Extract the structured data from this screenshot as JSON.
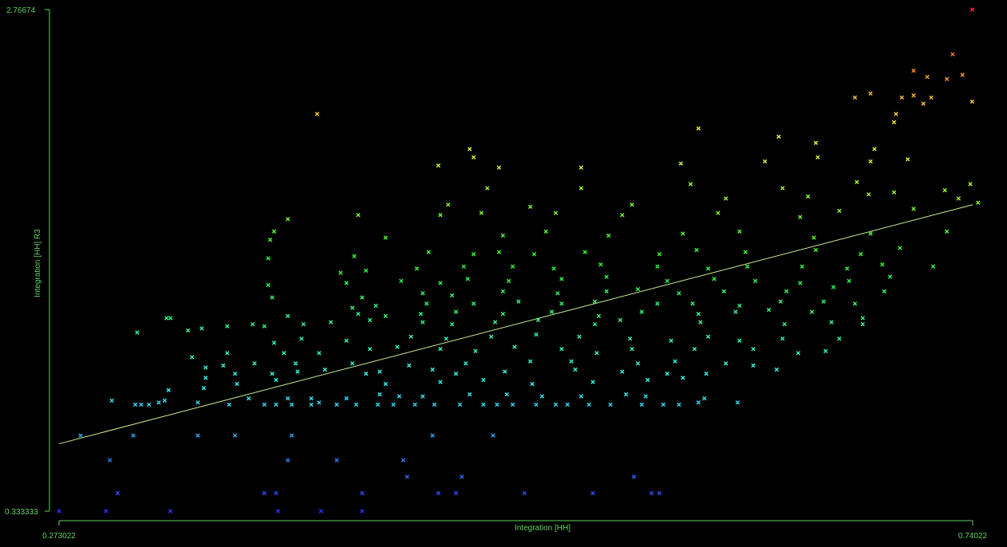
{
  "chart_data": {
    "type": "scatter",
    "xlabel": "Integration [HH]",
    "ylabel": "Integration [HH] R3",
    "xlim": [
      0.273022,
      0.74022
    ],
    "ylim": [
      0.333333,
      2.76674
    ],
    "x_tick_labels": [
      "0.273022",
      "0.74022"
    ],
    "y_tick_labels": [
      "2.76674",
      "0.333333"
    ],
    "grid": false,
    "legend": "none",
    "marker": "x",
    "color_scale": "rainbow by y value (blue low, red high)",
    "colors": {
      "background": "#000000",
      "axis": "#5fd35f",
      "text": "#5fd35f",
      "fit_line": "#c8f08c"
    },
    "regression_line": {
      "x": [
        0.273022,
        0.74022
      ],
      "y": [
        0.66,
        1.82
      ]
    },
    "points": [
      [
        0.273022,
        0.333333
      ],
      [
        0.297,
        0.333333
      ],
      [
        0.33,
        0.333333
      ],
      [
        0.385,
        0.333333
      ],
      [
        0.407,
        0.333333
      ],
      [
        0.428,
        0.333333
      ],
      [
        0.303,
        0.42
      ],
      [
        0.378,
        0.42
      ],
      [
        0.384,
        0.42
      ],
      [
        0.428,
        0.42
      ],
      [
        0.467,
        0.42
      ],
      [
        0.476,
        0.42
      ],
      [
        0.511,
        0.42
      ],
      [
        0.546,
        0.42
      ],
      [
        0.58,
        0.42
      ],
      [
        0.576,
        0.42
      ],
      [
        0.451,
        0.5
      ],
      [
        0.479,
        0.5
      ],
      [
        0.567,
        0.5
      ],
      [
        0.299,
        0.58
      ],
      [
        0.39,
        0.58
      ],
      [
        0.415,
        0.58
      ],
      [
        0.449,
        0.58
      ],
      [
        0.284,
        0.7
      ],
      [
        0.311,
        0.7
      ],
      [
        0.344,
        0.7
      ],
      [
        0.363,
        0.7
      ],
      [
        0.392,
        0.7
      ],
      [
        0.464,
        0.7
      ],
      [
        0.495,
        0.7
      ],
      [
        0.3,
        0.87
      ],
      [
        0.312,
        0.85
      ],
      [
        0.315,
        0.85
      ],
      [
        0.319,
        0.85
      ],
      [
        0.324,
        0.86
      ],
      [
        0.327,
        0.87
      ],
      [
        0.344,
        0.86
      ],
      [
        0.36,
        0.85
      ],
      [
        0.378,
        0.85
      ],
      [
        0.384,
        0.85
      ],
      [
        0.392,
        0.85
      ],
      [
        0.402,
        0.85
      ],
      [
        0.406,
        0.86
      ],
      [
        0.415,
        0.85
      ],
      [
        0.425,
        0.85
      ],
      [
        0.436,
        0.85
      ],
      [
        0.444,
        0.85
      ],
      [
        0.455,
        0.85
      ],
      [
        0.465,
        0.85
      ],
      [
        0.478,
        0.85
      ],
      [
        0.49,
        0.85
      ],
      [
        0.497,
        0.85
      ],
      [
        0.505,
        0.85
      ],
      [
        0.517,
        0.85
      ],
      [
        0.527,
        0.85
      ],
      [
        0.533,
        0.85
      ],
      [
        0.544,
        0.85
      ],
      [
        0.555,
        0.85
      ],
      [
        0.571,
        0.85
      ],
      [
        0.582,
        0.85
      ],
      [
        0.59,
        0.85
      ],
      [
        0.6,
        0.86
      ],
      [
        0.62,
        0.86
      ],
      [
        0.37,
        0.88
      ],
      [
        0.39,
        0.88
      ],
      [
        0.402,
        0.88
      ],
      [
        0.42,
        0.88
      ],
      [
        0.437,
        0.9
      ],
      [
        0.447,
        0.89
      ],
      [
        0.459,
        0.89
      ],
      [
        0.483,
        0.9
      ],
      [
        0.502,
        0.9
      ],
      [
        0.52,
        0.89
      ],
      [
        0.54,
        0.89
      ],
      [
        0.563,
        0.9
      ],
      [
        0.573,
        0.89
      ],
      [
        0.603,
        0.88
      ],
      [
        0.329,
        0.92
      ],
      [
        0.347,
        0.93
      ],
      [
        0.364,
        0.95
      ],
      [
        0.384,
        0.97
      ],
      [
        0.44,
        0.95
      ],
      [
        0.468,
        0.96
      ],
      [
        0.49,
        0.97
      ],
      [
        0.515,
        0.95
      ],
      [
        0.546,
        0.96
      ],
      [
        0.574,
        0.97
      ],
      [
        0.592,
        0.98
      ],
      [
        0.348,
        0.98
      ],
      [
        0.363,
        1.0
      ],
      [
        0.382,
        1.0
      ],
      [
        0.395,
        1.01
      ],
      [
        0.409,
        1.02
      ],
      [
        0.43,
        1.0
      ],
      [
        0.437,
        1.01
      ],
      [
        0.464,
        1.02
      ],
      [
        0.476,
        1.0
      ],
      [
        0.501,
        1.01
      ],
      [
        0.537,
        1.02
      ],
      [
        0.561,
        1.01
      ],
      [
        0.584,
        1.0
      ],
      [
        0.604,
        1.0
      ],
      [
        0.64,
        1.02
      ],
      [
        0.348,
        1.03
      ],
      [
        0.357,
        1.04
      ],
      [
        0.373,
        1.05
      ],
      [
        0.394,
        1.05
      ],
      [
        0.423,
        1.05
      ],
      [
        0.452,
        1.04
      ],
      [
        0.481,
        1.05
      ],
      [
        0.514,
        1.06
      ],
      [
        0.535,
        1.06
      ],
      [
        0.569,
        1.05
      ],
      [
        0.588,
        1.06
      ],
      [
        0.614,
        1.05
      ],
      [
        0.628,
        1.04
      ],
      [
        0.341,
        1.08
      ],
      [
        0.359,
        1.1
      ],
      [
        0.388,
        1.1
      ],
      [
        0.406,
        1.1
      ],
      [
        0.432,
        1.12
      ],
      [
        0.446,
        1.13
      ],
      [
        0.468,
        1.12
      ],
      [
        0.486,
        1.11
      ],
      [
        0.506,
        1.13
      ],
      [
        0.53,
        1.12
      ],
      [
        0.548,
        1.1
      ],
      [
        0.566,
        1.12
      ],
      [
        0.598,
        1.12
      ],
      [
        0.628,
        1.12
      ],
      [
        0.651,
        1.1
      ],
      [
        0.665,
        1.11
      ],
      [
        0.383,
        1.15
      ],
      [
        0.397,
        1.17
      ],
      [
        0.42,
        1.16
      ],
      [
        0.453,
        1.18
      ],
      [
        0.471,
        1.17
      ],
      [
        0.494,
        1.18
      ],
      [
        0.517,
        1.19
      ],
      [
        0.539,
        1.18
      ],
      [
        0.565,
        1.17
      ],
      [
        0.586,
        1.16
      ],
      [
        0.605,
        1.18
      ],
      [
        0.621,
        1.16
      ],
      [
        0.643,
        1.17
      ],
      [
        0.672,
        1.17
      ],
      [
        0.313,
        1.2
      ],
      [
        0.339,
        1.21
      ],
      [
        0.346,
        1.22
      ],
      [
        0.359,
        1.23
      ],
      [
        0.372,
        1.24
      ],
      [
        0.378,
        1.23
      ],
      [
        0.398,
        1.24
      ],
      [
        0.412,
        1.25
      ],
      [
        0.432,
        1.26
      ],
      [
        0.459,
        1.25
      ],
      [
        0.474,
        1.24
      ],
      [
        0.496,
        1.25
      ],
      [
        0.518,
        1.26
      ],
      [
        0.547,
        1.24
      ],
      [
        0.56,
        1.26
      ],
      [
        0.601,
        1.25
      ],
      [
        0.644,
        1.24
      ],
      [
        0.668,
        1.25
      ],
      [
        0.684,
        1.24
      ],
      [
        0.328,
        1.27
      ],
      [
        0.33,
        1.27
      ],
      [
        0.39,
        1.28
      ],
      [
        0.426,
        1.29
      ],
      [
        0.44,
        1.28
      ],
      [
        0.458,
        1.29
      ],
      [
        0.476,
        1.3
      ],
      [
        0.5,
        1.29
      ],
      [
        0.525,
        1.3
      ],
      [
        0.549,
        1.28
      ],
      [
        0.571,
        1.3
      ],
      [
        0.6,
        1.29
      ],
      [
        0.619,
        1.3
      ],
      [
        0.636,
        1.31
      ],
      [
        0.658,
        1.3
      ],
      [
        0.684,
        1.27
      ],
      [
        0.423,
        1.32
      ],
      [
        0.435,
        1.33
      ],
      [
        0.461,
        1.34
      ],
      [
        0.485,
        1.34
      ],
      [
        0.508,
        1.35
      ],
      [
        0.53,
        1.34
      ],
      [
        0.547,
        1.35
      ],
      [
        0.579,
        1.34
      ],
      [
        0.597,
        1.34
      ],
      [
        0.621,
        1.33
      ],
      [
        0.642,
        1.35
      ],
      [
        0.664,
        1.35
      ],
      [
        0.68,
        1.34
      ],
      [
        0.382,
        1.37
      ],
      [
        0.428,
        1.37
      ],
      [
        0.459,
        1.39
      ],
      [
        0.474,
        1.38
      ],
      [
        0.5,
        1.4
      ],
      [
        0.528,
        1.39
      ],
      [
        0.553,
        1.4
      ],
      [
        0.569,
        1.41
      ],
      [
        0.59,
        1.39
      ],
      [
        0.613,
        1.4
      ],
      [
        0.645,
        1.4
      ],
      [
        0.669,
        1.42
      ],
      [
        0.695,
        1.4
      ],
      [
        0.38,
        1.43
      ],
      [
        0.42,
        1.44
      ],
      [
        0.448,
        1.45
      ],
      [
        0.468,
        1.44
      ],
      [
        0.482,
        1.46
      ],
      [
        0.503,
        1.45
      ],
      [
        0.53,
        1.46
      ],
      [
        0.553,
        1.47
      ],
      [
        0.584,
        1.45
      ],
      [
        0.608,
        1.46
      ],
      [
        0.629,
        1.45
      ],
      [
        0.652,
        1.44
      ],
      [
        0.677,
        1.45
      ],
      [
        0.698,
        1.47
      ],
      [
        0.417,
        1.49
      ],
      [
        0.43,
        1.5
      ],
      [
        0.456,
        1.51
      ],
      [
        0.48,
        1.52
      ],
      [
        0.505,
        1.52
      ],
      [
        0.526,
        1.51
      ],
      [
        0.55,
        1.53
      ],
      [
        0.579,
        1.52
      ],
      [
        0.605,
        1.51
      ],
      [
        0.625,
        1.52
      ],
      [
        0.653,
        1.52
      ],
      [
        0.676,
        1.51
      ],
      [
        0.694,
        1.53
      ],
      [
        0.72,
        1.52
      ],
      [
        0.38,
        1.56
      ],
      [
        0.424,
        1.57
      ],
      [
        0.462,
        1.59
      ],
      [
        0.485,
        1.58
      ],
      [
        0.498,
        1.59
      ],
      [
        0.516,
        1.58
      ],
      [
        0.542,
        1.59
      ],
      [
        0.58,
        1.58
      ],
      [
        0.599,
        1.6
      ],
      [
        0.624,
        1.59
      ],
      [
        0.66,
        1.6
      ],
      [
        0.683,
        1.58
      ],
      [
        0.703,
        1.61
      ],
      [
        0.381,
        1.65
      ],
      [
        0.383,
        1.69
      ],
      [
        0.44,
        1.66
      ],
      [
        0.5,
        1.67
      ],
      [
        0.522,
        1.69
      ],
      [
        0.554,
        1.67
      ],
      [
        0.592,
        1.68
      ],
      [
        0.621,
        1.69
      ],
      [
        0.659,
        1.66
      ],
      [
        0.688,
        1.68
      ],
      [
        0.727,
        1.69
      ],
      [
        0.39,
        1.75
      ],
      [
        0.426,
        1.77
      ],
      [
        0.468,
        1.77
      ],
      [
        0.489,
        1.78
      ],
      [
        0.527,
        1.78
      ],
      [
        0.561,
        1.77
      ],
      [
        0.61,
        1.78
      ],
      [
        0.652,
        1.76
      ],
      [
        0.672,
        1.79
      ],
      [
        0.71,
        1.8
      ],
      [
        0.743,
        1.83
      ],
      [
        0.472,
        1.82
      ],
      [
        0.514,
        1.81
      ],
      [
        0.566,
        1.82
      ],
      [
        0.614,
        1.85
      ],
      [
        0.656,
        1.86
      ],
      [
        0.687,
        1.87
      ],
      [
        0.7,
        1.88
      ],
      [
        0.733,
        1.85
      ],
      [
        0.492,
        1.9
      ],
      [
        0.54,
        1.9
      ],
      [
        0.596,
        1.92
      ],
      [
        0.643,
        1.9
      ],
      [
        0.681,
        1.93
      ],
      [
        0.726,
        1.89
      ],
      [
        0.739,
        1.92
      ],
      [
        0.467,
        2.01
      ],
      [
        0.498,
        2.0
      ],
      [
        0.54,
        2.0
      ],
      [
        0.591,
        2.02
      ],
      [
        0.634,
        2.03
      ],
      [
        0.661,
        2.05
      ],
      [
        0.707,
        2.04
      ],
      [
        0.688,
        2.03
      ],
      [
        0.405,
        2.26
      ],
      [
        0.483,
        2.09
      ],
      [
        0.485,
        2.05
      ],
      [
        0.6,
        2.19
      ],
      [
        0.641,
        2.15
      ],
      [
        0.66,
        2.12
      ],
      [
        0.69,
        2.09
      ],
      [
        0.7,
        2.22
      ],
      [
        0.68,
        2.34
      ],
      [
        0.688,
        2.36
      ],
      [
        0.71,
        2.35
      ],
      [
        0.715,
        2.31
      ],
      [
        0.704,
        2.34
      ],
      [
        0.701,
        2.26
      ],
      [
        0.74,
        2.32
      ],
      [
        0.719,
        2.34
      ],
      [
        0.73,
        2.55
      ],
      [
        0.74,
        2.76674
      ],
      [
        0.71,
        2.47
      ],
      [
        0.717,
        2.44
      ],
      [
        0.727,
        2.43
      ],
      [
        0.735,
        2.45
      ]
    ]
  }
}
